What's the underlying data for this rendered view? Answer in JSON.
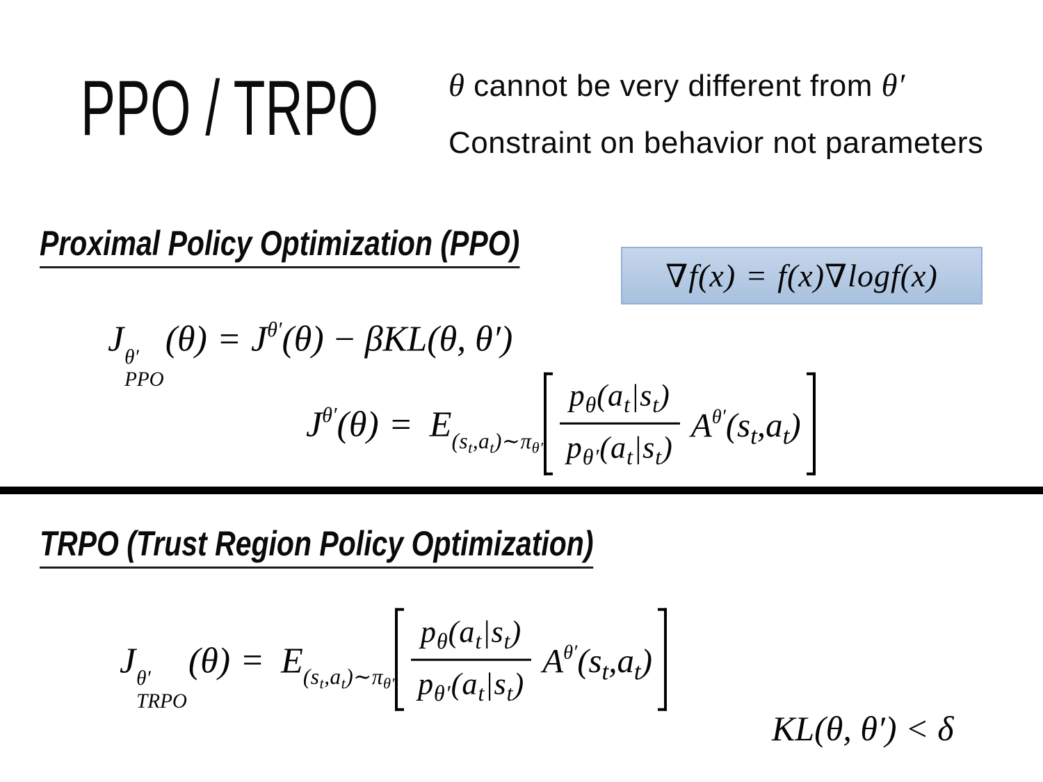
{
  "slide": {
    "title": "PPO / TRPO",
    "note1": {
      "theta": "θ",
      "text": " cannot be very different from ",
      "theta_prime": "θ′"
    },
    "note2": "Constraint on behavior not parameters",
    "ppo_heading": "Proximal Policy Optimization (PPO)",
    "trpo_heading": "TRPO (Trust Region Policy Optimization)"
  },
  "colors": {
    "background": "#ffffff",
    "text": "#0a0a0a",
    "divider": "#000000",
    "highlight_fill_top": "#c6d6eb",
    "highlight_fill_bottom": "#a8c1df",
    "highlight_border": "#91b1d5"
  },
  "math": {
    "grad": {
      "n1": "∇",
      "t1": "f(x)",
      "eq": "=",
      "t2": "f(x)",
      "n2": "∇",
      "t3": "logf(x)"
    },
    "ppo": {
      "J": "J",
      "sup": "θ′",
      "sub": "PPO",
      "arg": "(θ)",
      "eq": "=",
      "J2": "J",
      "sup2": "θ′",
      "arg2": "(θ)",
      "minus": "−",
      "tail": "βKL(θ, θ′)"
    },
    "f2head": {
      "J": "J",
      "sup": "θ′",
      "arg": "(θ)",
      "eq": "="
    },
    "trpohead": {
      "J": "J",
      "sup": "θ′",
      "sub": "TRPO",
      "arg": "(θ)",
      "eq": "="
    },
    "E": "E",
    "esub": {
      "p1": "(s",
      "t1": "t",
      "p2": ",a",
      "t2": "t",
      "p3": ")∼π",
      "th": "θ′"
    },
    "num": {
      "p": "p",
      "s": "θ",
      "a1": "(a",
      "t1": "t",
      "a2": "|s",
      "t2": "t",
      "a3": ")"
    },
    "den": {
      "p": "p",
      "s": "θ′",
      "a1": "(a",
      "t1": "t",
      "a2": "|s",
      "t2": "t",
      "a3": ")"
    },
    "adv": {
      "A": "A",
      "sup": "θ′",
      "a1": "(s",
      "t1": "t",
      "a2": ",a",
      "t2": "t",
      "a3": ")"
    },
    "kl": "KL(θ, θ′) < δ"
  }
}
